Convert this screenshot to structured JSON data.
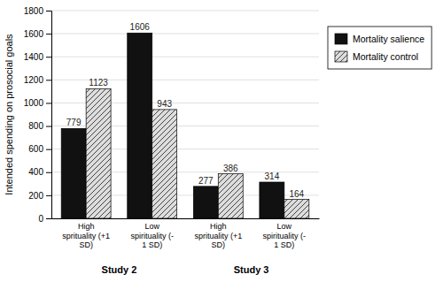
{
  "chart_data": {
    "type": "bar",
    "categories": [
      "High\nsprituality (+1\nSD)",
      "Low\nspirituality (-\n1 SD)",
      "High\nsprituality (+1\nSD)",
      "Low\nspirituality (-\n1 SD)"
    ],
    "series": [
      {
        "name": "Mortality salience",
        "color": "#111111",
        "values": [
          779,
          1606,
          277,
          314
        ]
      },
      {
        "name": "Mortality control",
        "color": "#dddddd",
        "values": [
          1123,
          943,
          386,
          164
        ]
      }
    ],
    "ylabel": "Intended spending on prosocial goals",
    "ylim": [
      0,
      1800
    ],
    "yticks": [
      0,
      200,
      400,
      600,
      800,
      1000,
      1200,
      1400,
      1600,
      1800
    ],
    "grid": true,
    "data_labels": true,
    "legend": "right",
    "annotations": [
      "Study 2",
      "Study 3"
    ]
  }
}
